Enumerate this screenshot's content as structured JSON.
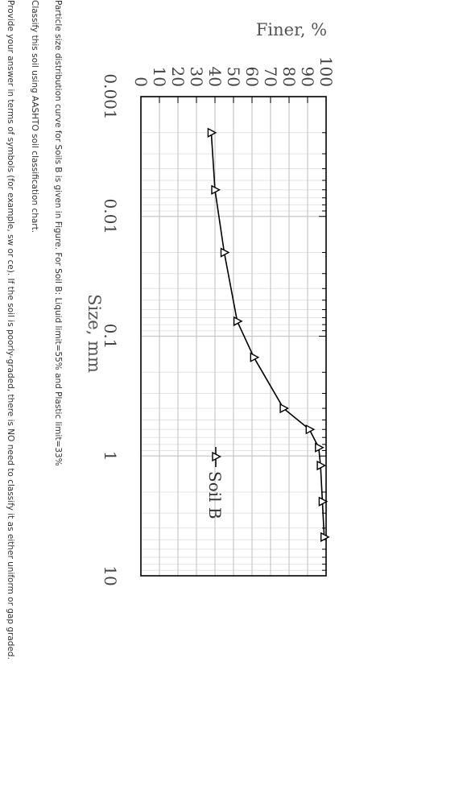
{
  "chart_data": {
    "type": "line",
    "title": "",
    "xlabel": "Size, mm",
    "ylabel": "Finer, %",
    "x_scale": "log",
    "xlim": [
      0.001,
      10
    ],
    "ylim": [
      0,
      100
    ],
    "x_ticks": [
      0.001,
      0.01,
      0.1,
      1,
      10
    ],
    "x_tick_labels": [
      "0.001",
      "0.01",
      "0.1",
      "1",
      "10"
    ],
    "y_ticks": [
      0,
      10,
      20,
      30,
      40,
      50,
      60,
      70,
      80,
      90,
      100
    ],
    "y_tick_labels": [
      "0",
      "10",
      "20",
      "30",
      "40",
      "50",
      "60",
      "70",
      "80",
      "90",
      "100"
    ],
    "grid": true,
    "legend_position": "bottom-right",
    "series": [
      {
        "name": "Soil B",
        "marker": "triangle",
        "color": "#000000",
        "x": [
          0.002,
          0.006,
          0.02,
          0.075,
          0.15,
          0.4,
          0.6,
          0.85,
          1.2,
          2.4,
          4.75
        ],
        "y": [
          38,
          40,
          45,
          52,
          61,
          77,
          91,
          96,
          97,
          98,
          99
        ]
      }
    ]
  },
  "caption": {
    "line1": "Particle size distribution curve for Soils B is given in Figure. For Soil B: Liquid limit=55% and Plastic limit=33%",
    "line2": "Classify this soil using AASHTO soil classification chart.",
    "line3": "Provide your answer in terms of symbols (for example, sw or ce). If the soil is poorly-graded, there is NO need to classify it as either uniform or gap graded."
  }
}
